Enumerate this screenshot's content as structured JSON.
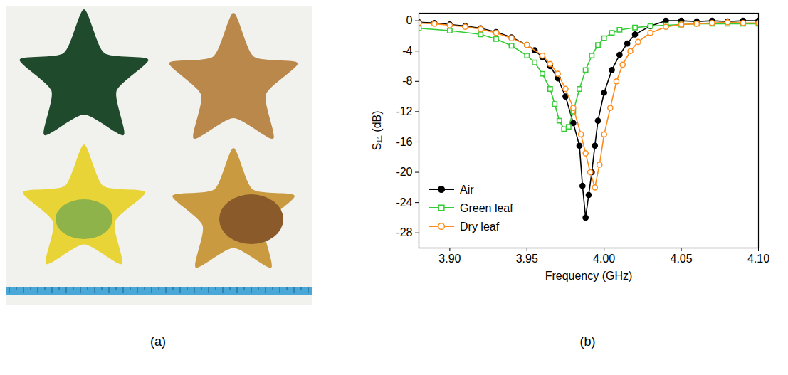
{
  "photo_panel": {
    "label": "(a)"
  },
  "chart_data": {
    "type": "line",
    "panel_label": "(b)",
    "x_label": "Frequency (GHz)",
    "y_label": "S₁₁ (dB)",
    "xlim": [
      3.88,
      4.1
    ],
    "xticks": [
      {
        "value": 3.9,
        "label": "3.90"
      },
      3.95,
      {
        "value": 4.0,
        "label": "4.00"
      },
      4.05,
      {
        "value": 4.1,
        "label": "4.10"
      }
    ],
    "ylim": [
      -30,
      1
    ],
    "yticks": [
      0,
      -4,
      -8,
      -12,
      -16,
      -20,
      -24,
      -28
    ],
    "grid": false,
    "legend": "lower left",
    "series": [
      {
        "name": "Air",
        "color": "#000000",
        "marker": "filled_circle",
        "line_style": "solid",
        "x": [
          3.88,
          3.89,
          3.9,
          3.91,
          3.92,
          3.93,
          3.94,
          3.95,
          3.955,
          3.96,
          3.965,
          3.97,
          3.975,
          3.98,
          3.984,
          3.986,
          3.988,
          3.99,
          3.992,
          3.994,
          3.996,
          4.0,
          4.005,
          4.01,
          4.015,
          4.02,
          4.03,
          4.04,
          4.05,
          4.06,
          4.07,
          4.08,
          4.09,
          4.1
        ],
        "values": [
          -0.2,
          -0.3,
          -0.5,
          -0.7,
          -1.0,
          -1.5,
          -2.2,
          -3.2,
          -3.9,
          -4.8,
          -6.0,
          -7.6,
          -10,
          -13.5,
          -16.5,
          -21.8,
          -26,
          -23,
          -20,
          -16.5,
          -13.2,
          -9.5,
          -6.5,
          -4.5,
          -3,
          -1.8,
          -0.7,
          0,
          0,
          -0.1,
          0,
          -0.1,
          0,
          0
        ]
      },
      {
        "name": "Green leaf",
        "color": "#33cc33",
        "marker": "open_square",
        "line_style": "solid",
        "x": [
          3.88,
          3.9,
          3.92,
          3.93,
          3.94,
          3.95,
          3.955,
          3.96,
          3.965,
          3.968,
          3.971,
          3.974,
          3.977,
          3.98,
          3.984,
          3.988,
          3.992,
          3.996,
          4.0,
          4.005,
          4.01,
          4.02,
          4.03,
          4.04,
          4.05,
          4.06,
          4.07,
          4.08,
          4.09,
          4.1
        ],
        "values": [
          -1.0,
          -1.3,
          -1.8,
          -2.4,
          -3.3,
          -4.6,
          -5.5,
          -7,
          -9,
          -11,
          -13.2,
          -14.3,
          -14,
          -12,
          -9,
          -6.5,
          -4.6,
          -3.2,
          -2.3,
          -1.6,
          -1.2,
          -0.9,
          -0.7,
          -0.6,
          -0.5,
          -0.4,
          -0.4,
          -0.4,
          -0.4,
          -0.4
        ]
      },
      {
        "name": "Dry leaf",
        "color": "#ff8c1a",
        "marker": "open_circle",
        "line_style": "solid",
        "x": [
          3.88,
          3.89,
          3.9,
          3.91,
          3.92,
          3.93,
          3.94,
          3.95,
          3.96,
          3.965,
          3.97,
          3.975,
          3.98,
          3.985,
          3.988,
          3.991,
          3.994,
          3.997,
          4.0,
          4.004,
          4.008,
          4.012,
          4.017,
          4.022,
          4.03,
          4.04,
          4.05,
          4.06,
          4.07,
          4.08,
          4.09,
          4.1
        ],
        "values": [
          -0.3,
          -0.4,
          -0.6,
          -0.8,
          -1.1,
          -1.6,
          -2.3,
          -3.2,
          -4.6,
          -5.7,
          -7.0,
          -9,
          -11.5,
          -15,
          -17.5,
          -20,
          -22,
          -19,
          -15,
          -11.5,
          -8,
          -5.8,
          -4,
          -2.8,
          -1.6,
          -0.8,
          -0.5,
          -0.4,
          -0.3,
          -0.2,
          -0.3,
          -0.3
        ]
      }
    ]
  }
}
